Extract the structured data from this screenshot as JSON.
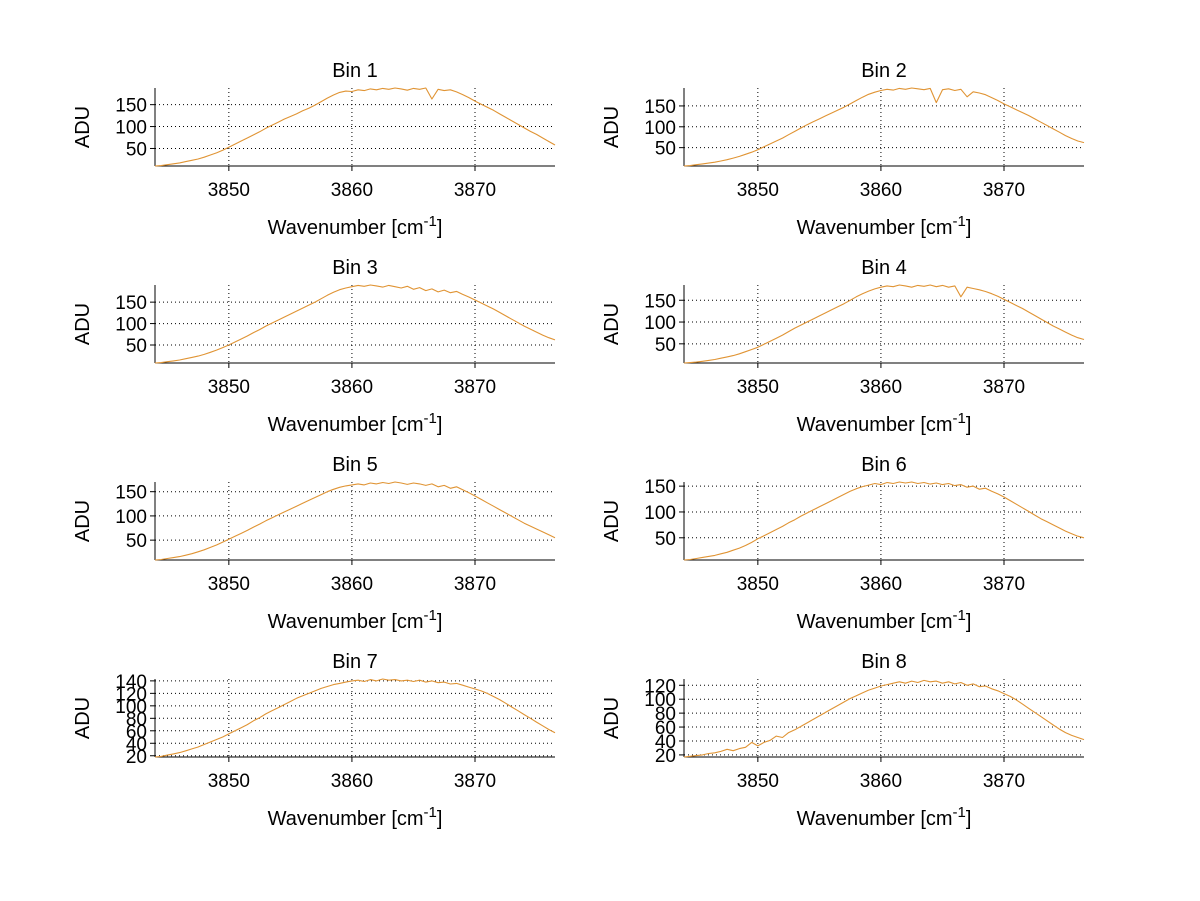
{
  "figure": {
    "background": "#ffffff",
    "line_color": "#E09434",
    "grid_color": "#000000",
    "axis_color": "#000000",
    "text_color": "#000000"
  },
  "labels": {
    "ylabel": "ADU",
    "xlabel_main": "Wavenumber [cm",
    "xlabel_sup": "-1",
    "xlabel_close": "]"
  },
  "chart_data": [
    {
      "type": "line",
      "title": "Bin 1",
      "xlabel": "Wavenumber [cm⁻¹]",
      "ylabel": "ADU",
      "grid": true,
      "x_start": 3844,
      "x_step": 0.5,
      "xlim": [
        3844,
        3876.5
      ],
      "ylim": [
        10,
        188
      ],
      "xticks": [
        3850,
        3860,
        3870
      ],
      "xtick_labels": [
        "3850",
        "3860",
        "3870"
      ],
      "yticks": [
        50,
        100,
        150
      ],
      "ytick_labels": [
        "50",
        "100",
        "150"
      ],
      "values": [
        10,
        11,
        13,
        15,
        17,
        20,
        23,
        26,
        30,
        35,
        40,
        46,
        53,
        60,
        67,
        74,
        81,
        88,
        96,
        103,
        110,
        117,
        123,
        129,
        136,
        142,
        149,
        157,
        165,
        172,
        178,
        181,
        180,
        184,
        182,
        186,
        184,
        187,
        185,
        188,
        186,
        183,
        187,
        185,
        188,
        163,
        185,
        182,
        184,
        179,
        173,
        166,
        158,
        151,
        144,
        137,
        129,
        121,
        113,
        105,
        97,
        89,
        82,
        74,
        66,
        58
      ]
    },
    {
      "type": "line",
      "title": "Bin 2",
      "xlabel": "Wavenumber [cm⁻¹]",
      "ylabel": "ADU",
      "grid": true,
      "x_start": 3844,
      "x_step": 0.5,
      "xlim": [
        3844,
        3876.5
      ],
      "ylim": [
        6,
        193
      ],
      "xticks": [
        3850,
        3860,
        3870
      ],
      "xtick_labels": [
        "3850",
        "3860",
        "3870"
      ],
      "yticks": [
        50,
        100,
        150
      ],
      "ytick_labels": [
        "50",
        "100",
        "150"
      ],
      "values": [
        6,
        7,
        9,
        11,
        13,
        15,
        18,
        21,
        25,
        29,
        34,
        39,
        45,
        52,
        59,
        66,
        73,
        81,
        89,
        97,
        105,
        112,
        119,
        126,
        133,
        140,
        147,
        155,
        163,
        171,
        178,
        183,
        187,
        190,
        188,
        192,
        190,
        193,
        191,
        189,
        192,
        158,
        189,
        191,
        187,
        190,
        172,
        184,
        181,
        177,
        170,
        163,
        155,
        148,
        141,
        134,
        127,
        119,
        111,
        103,
        95,
        87,
        79,
        72,
        66,
        62
      ]
    },
    {
      "type": "line",
      "title": "Bin 3",
      "xlabel": "Wavenumber [cm⁻¹]",
      "ylabel": "ADU",
      "grid": true,
      "x_start": 3844,
      "x_step": 0.5,
      "xlim": [
        3844,
        3876.5
      ],
      "ylim": [
        8,
        190
      ],
      "xticks": [
        3850,
        3860,
        3870
      ],
      "xtick_labels": [
        "3850",
        "3860",
        "3870"
      ],
      "yticks": [
        50,
        100,
        150
      ],
      "ytick_labels": [
        "50",
        "100",
        "150"
      ],
      "values": [
        8,
        9,
        11,
        13,
        15,
        18,
        21,
        24,
        28,
        33,
        38,
        44,
        50,
        57,
        64,
        71,
        79,
        86,
        94,
        101,
        108,
        115,
        122,
        129,
        136,
        143,
        150,
        158,
        166,
        173,
        179,
        183,
        186,
        189,
        187,
        190,
        188,
        185,
        189,
        186,
        183,
        187,
        180,
        184,
        177,
        181,
        174,
        178,
        172,
        175,
        168,
        162,
        155,
        148,
        141,
        134,
        126,
        118,
        110,
        102,
        94,
        87,
        80,
        73,
        67,
        62
      ]
    },
    {
      "type": "line",
      "title": "Bin 4",
      "xlabel": "Wavenumber [cm⁻¹]",
      "ylabel": "ADU",
      "grid": true,
      "x_start": 3844,
      "x_step": 0.5,
      "xlim": [
        3844,
        3876.5
      ],
      "ylim": [
        6,
        185
      ],
      "xticks": [
        3850,
        3860,
        3870
      ],
      "xtick_labels": [
        "3850",
        "3860",
        "3870"
      ],
      "yticks": [
        50,
        100,
        150
      ],
      "ytick_labels": [
        "50",
        "100",
        "150"
      ],
      "values": [
        6,
        7,
        8,
        10,
        12,
        14,
        17,
        20,
        23,
        27,
        32,
        37,
        42,
        49,
        56,
        63,
        70,
        78,
        86,
        93,
        100,
        107,
        114,
        121,
        128,
        135,
        142,
        150,
        158,
        165,
        171,
        176,
        180,
        183,
        181,
        185,
        183,
        180,
        184,
        182,
        185,
        181,
        184,
        180,
        183,
        158,
        180,
        177,
        174,
        170,
        165,
        159,
        152,
        145,
        138,
        131,
        123,
        115,
        107,
        99,
        91,
        84,
        77,
        70,
        64,
        60
      ]
    },
    {
      "type": "line",
      "title": "Bin 5",
      "xlabel": "Wavenumber [cm⁻¹]",
      "ylabel": "ADU",
      "grid": true,
      "x_start": 3844,
      "x_step": 0.5,
      "xlim": [
        3844,
        3876.5
      ],
      "ylim": [
        9,
        170
      ],
      "xticks": [
        3850,
        3860,
        3870
      ],
      "xtick_labels": [
        "3850",
        "3860",
        "3870"
      ],
      "yticks": [
        50,
        100,
        150
      ],
      "ytick_labels": [
        "50",
        "100",
        "150"
      ],
      "values": [
        9,
        10,
        12,
        14,
        16,
        19,
        22,
        26,
        30,
        35,
        40,
        46,
        52,
        58,
        64,
        70,
        77,
        83,
        90,
        96,
        102,
        108,
        114,
        120,
        126,
        132,
        138,
        144,
        150,
        155,
        159,
        162,
        164,
        166,
        164,
        168,
        166,
        169,
        167,
        170,
        168,
        165,
        168,
        166,
        163,
        166,
        160,
        163,
        157,
        160,
        154,
        148,
        141,
        134,
        127,
        120,
        113,
        106,
        99,
        92,
        85,
        79,
        73,
        67,
        61,
        55
      ]
    },
    {
      "type": "line",
      "title": "Bin 6",
      "xlabel": "Wavenumber [cm⁻¹]",
      "ylabel": "ADU",
      "grid": true,
      "x_start": 3844,
      "x_step": 0.5,
      "xlim": [
        3844,
        3876.5
      ],
      "ylim": [
        7,
        158
      ],
      "xticks": [
        3850,
        3860,
        3870
      ],
      "xtick_labels": [
        "3850",
        "3860",
        "3870"
      ],
      "yticks": [
        50,
        100,
        150
      ],
      "ytick_labels": [
        "50",
        "100",
        "150"
      ],
      "values": [
        7,
        8,
        10,
        12,
        14,
        16,
        19,
        22,
        26,
        30,
        35,
        41,
        48,
        54,
        60,
        66,
        72,
        79,
        85,
        92,
        98,
        104,
        110,
        116,
        122,
        128,
        134,
        140,
        145,
        149,
        152,
        155,
        153,
        157,
        155,
        158,
        156,
        158,
        155,
        157,
        154,
        156,
        153,
        155,
        151,
        153,
        148,
        150,
        144,
        146,
        140,
        135,
        129,
        122,
        115,
        108,
        101,
        94,
        87,
        81,
        75,
        69,
        63,
        58,
        53,
        50
      ]
    },
    {
      "type": "line",
      "title": "Bin 7",
      "xlabel": "Wavenumber [cm⁻¹]",
      "ylabel": "ADU",
      "grid": true,
      "x_start": 3844,
      "x_step": 0.5,
      "xlim": [
        3844,
        3876.5
      ],
      "ylim": [
        18,
        143
      ],
      "xticks": [
        3850,
        3860,
        3870
      ],
      "xtick_labels": [
        "3850",
        "3860",
        "3870"
      ],
      "yticks": [
        20,
        40,
        60,
        80,
        100,
        120,
        140
      ],
      "ytick_labels": [
        "20",
        "40",
        "60",
        "80",
        "100",
        "120",
        "140"
      ],
      "values": [
        18,
        19,
        21,
        23,
        25,
        28,
        31,
        34,
        38,
        42,
        46,
        50,
        55,
        60,
        65,
        70,
        76,
        81,
        87,
        92,
        97,
        102,
        107,
        112,
        116,
        120,
        124,
        128,
        131,
        134,
        136,
        138,
        140,
        141,
        139,
        142,
        140,
        143,
        141,
        142,
        140,
        141,
        139,
        141,
        138,
        140,
        137,
        138,
        135,
        136,
        133,
        130,
        127,
        124,
        120,
        115,
        110,
        104,
        98,
        92,
        86,
        80,
        74,
        68,
        62,
        57
      ]
    },
    {
      "type": "line",
      "title": "Bin 8",
      "xlabel": "Wavenumber [cm⁻¹]",
      "ylabel": "ADU",
      "grid": true,
      "x_start": 3844,
      "x_step": 0.5,
      "xlim": [
        3844,
        3876.5
      ],
      "ylim": [
        17,
        129
      ],
      "xticks": [
        3850,
        3860,
        3870
      ],
      "xtick_labels": [
        "3850",
        "3860",
        "3870"
      ],
      "yticks": [
        20,
        40,
        60,
        80,
        100,
        120
      ],
      "ytick_labels": [
        "20",
        "40",
        "60",
        "80",
        "100",
        "120"
      ],
      "values": [
        17,
        18,
        19,
        20,
        22,
        23,
        25,
        28,
        26,
        29,
        31,
        38,
        33,
        38,
        41,
        47,
        45,
        52,
        56,
        61,
        66,
        71,
        76,
        81,
        86,
        91,
        96,
        101,
        105,
        109,
        113,
        116,
        119,
        121,
        123,
        125,
        123,
        126,
        124,
        127,
        125,
        126,
        123,
        125,
        122,
        124,
        120,
        122,
        118,
        119,
        115,
        112,
        108,
        104,
        99,
        93,
        87,
        81,
        75,
        69,
        63,
        57,
        52,
        48,
        45,
        42
      ]
    }
  ]
}
